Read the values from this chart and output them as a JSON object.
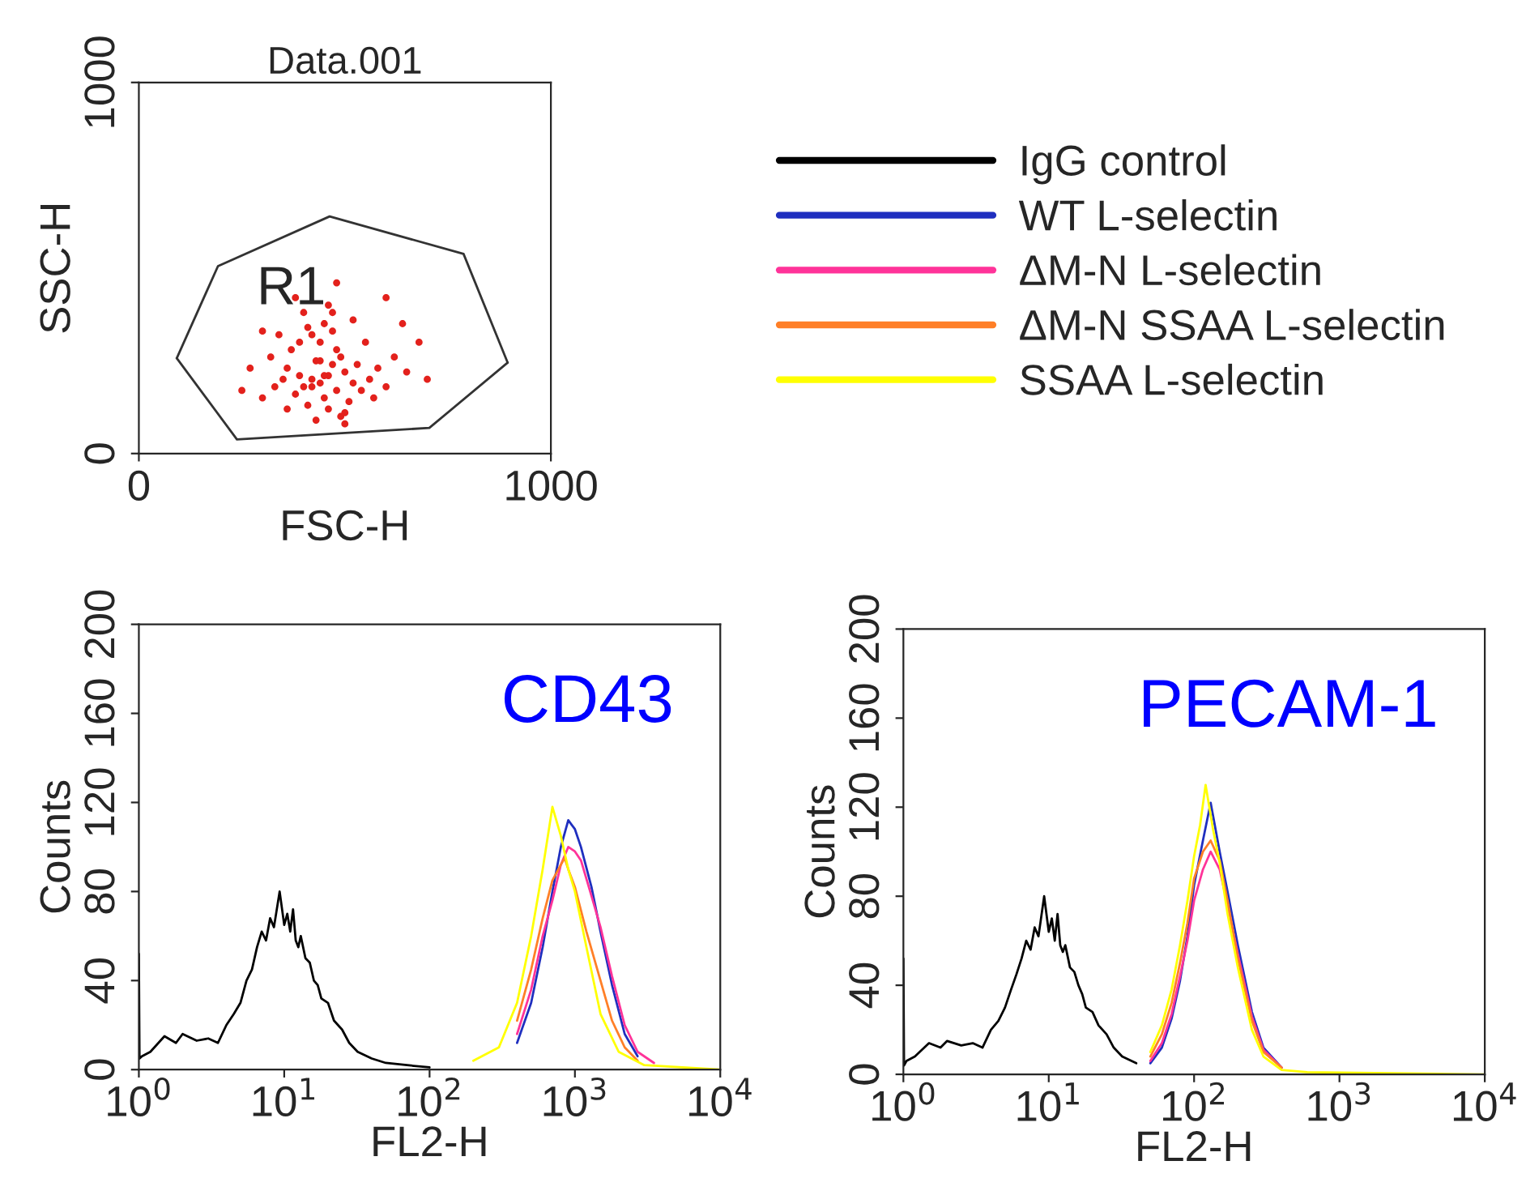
{
  "chart_data": [
    {
      "type": "scatter",
      "title": "Data.001",
      "xlabel": "FSC-H",
      "ylabel": "SSC-H",
      "xlim": [
        0,
        1000
      ],
      "ylim": [
        0,
        1000
      ],
      "xticks": [
        0,
        1000
      ],
      "yticks": [
        0,
        1000
      ],
      "grid": false,
      "annotations": [
        {
          "text": "R1",
          "x": 370,
          "y": 440
        }
      ],
      "series": [
        {
          "type": "scatter",
          "color": "#e3211c",
          "x": [
            400,
            420,
            440,
            460,
            480,
            500,
            380,
            360,
            450,
            470,
            430,
            410,
            520,
            540,
            390,
            490,
            510,
            370,
            350,
            460,
            440,
            420,
            480,
            500,
            530,
            560,
            330,
            320,
            580,
            600,
            450,
            400,
            470,
            490,
            300,
            620,
            650,
            380,
            550,
            430,
            270,
            250,
            680,
            700,
            460,
            410,
            520,
            360,
            600,
            480,
            440,
            500,
            390,
            340,
            570,
            420,
            450,
            640,
            300,
            470
          ],
          "values": [
            180,
            200,
            190,
            210,
            170,
            220,
            160,
            230,
            150,
            240,
            250,
            130,
            190,
            170,
            210,
            260,
            140,
            280,
            200,
            120,
            300,
            320,
            280,
            110,
            240,
            200,
            180,
            260,
            230,
            180,
            350,
            380,
            330,
            100,
            150,
            260,
            220,
            420,
            300,
            90,
            230,
            170,
            300,
            200,
            400,
            340,
            360,
            120,
            420,
            460,
            250,
            80,
            300,
            320,
            150,
            180,
            210,
            350,
            330,
            380
          ]
        },
        {
          "type": "line",
          "color": "#333333",
          "x": [
            92,
            192,
            463,
            788,
            895
          ],
          "values": [
            257,
            505,
            639,
            538,
            245
          ]
        },
        {
          "type": "line",
          "color": "#333333",
          "x": [
            92,
            238,
            705,
            895
          ],
          "values": [
            257,
            38,
            69,
            245
          ]
        }
      ]
    },
    {
      "type": "line",
      "xlabel": "FL2-H",
      "ylabel": "Counts",
      "log": "x",
      "xlim": [
        1,
        10000
      ],
      "ylim": [
        0,
        200
      ],
      "grid": false,
      "xticks": [
        {
          "value": 1,
          "label": "10$^{0}$"
        },
        {
          "value": 10,
          "label": "10$^{1}$"
        },
        {
          "value": 100,
          "label": "10$^{2}$"
        },
        {
          "value": 1000,
          "label": "10$^{3}$"
        },
        {
          "value": 10000,
          "label": "10$^{4}$"
        }
      ],
      "yticks": [
        0,
        40,
        80,
        120,
        160,
        200
      ],
      "annotations": [
        "CD43"
      ],
      "series": [
        {
          "color": "#000000",
          "x": [
            1,
            1.01,
            1.05,
            1.2,
            1.5,
            1.8,
            2,
            2.5,
            3,
            3.5,
            4,
            4.5,
            5,
            5.5,
            6,
            6.5,
            7,
            7.5,
            8,
            8.5,
            9.3,
            10,
            10.5,
            11,
            11.5,
            12,
            12.5,
            13,
            14,
            15,
            16,
            17,
            18,
            20,
            22,
            25,
            28,
            32,
            40,
            50,
            70,
            100
          ],
          "values": [
            52,
            5,
            6,
            8,
            15,
            12,
            16,
            13,
            14,
            12,
            20,
            25,
            30,
            40,
            45,
            55,
            62,
            58,
            68,
            64,
            80,
            65,
            70,
            62,
            72,
            58,
            55,
            60,
            50,
            48,
            40,
            38,
            32,
            30,
            22,
            18,
            12,
            8,
            5,
            3,
            2,
            1
          ]
        },
        {
          "color": "#1f2fbf",
          "x": [
            400,
            500,
            600,
            700,
            800,
            900,
            1000,
            1100,
            1300,
            1500,
            1800,
            2200,
            2700
          ],
          "values": [
            12,
            30,
            55,
            80,
            100,
            112,
            108,
            100,
            82,
            62,
            38,
            16,
            6
          ]
        },
        {
          "color": "#ff3399",
          "x": [
            400,
            500,
            600,
            700,
            800,
            900,
            1000,
            1100,
            1300,
            1500,
            1800,
            2200,
            2700,
            3500
          ],
          "values": [
            16,
            36,
            60,
            76,
            92,
            100,
            98,
            94,
            78,
            64,
            42,
            20,
            8,
            3
          ]
        },
        {
          "color": "#ff7f27",
          "x": [
            400,
            500,
            600,
            700,
            800,
            850,
            900,
            1000,
            1200,
            1500,
            1800,
            2200,
            2700
          ],
          "values": [
            22,
            45,
            68,
            85,
            92,
            95,
            90,
            82,
            62,
            40,
            22,
            10,
            4
          ]
        },
        {
          "color": "#ffff00",
          "x": [
            200,
            300,
            400,
            500,
            600,
            700,
            800,
            900,
            1000,
            1200,
            1500,
            2000,
            3000,
            10000
          ],
          "values": [
            4,
            10,
            30,
            60,
            90,
            118,
            105,
            90,
            80,
            55,
            25,
            8,
            2,
            0
          ]
        }
      ]
    },
    {
      "type": "line",
      "xlabel": "FL2-H",
      "ylabel": "Counts",
      "log": "x",
      "xlim": [
        1,
        10000
      ],
      "ylim": [
        0,
        200
      ],
      "grid": false,
      "legend": "top",
      "xticks": [
        {
          "value": 1,
          "label": "10$^{0}$"
        },
        {
          "value": 10,
          "label": "10$^{1}$"
        },
        {
          "value": 100,
          "label": "10$^{2}$"
        },
        {
          "value": 1000,
          "label": "10$^{3}$"
        },
        {
          "value": 10000,
          "label": "10$^{4}$"
        }
      ],
      "yticks": [
        0,
        40,
        80,
        120,
        160,
        200
      ],
      "annotations": [
        "PECAM-1"
      ],
      "series": [
        {
          "name": "IgG control",
          "color": "#000000",
          "x": [
            1,
            1.01,
            1.05,
            1.2,
            1.5,
            1.8,
            2,
            2.5,
            3,
            3.5,
            4,
            4.5,
            5,
            5.5,
            6,
            6.5,
            7,
            7.5,
            8,
            8.5,
            9.3,
            10,
            10.5,
            11,
            11.5,
            12,
            12.5,
            13,
            14,
            15,
            16,
            17,
            18,
            20,
            22,
            25,
            28,
            32,
            40
          ],
          "values": [
            52,
            4,
            6,
            8,
            14,
            12,
            15,
            13,
            14,
            12,
            20,
            24,
            30,
            38,
            45,
            52,
            60,
            56,
            66,
            62,
            80,
            64,
            70,
            60,
            72,
            58,
            55,
            58,
            48,
            46,
            40,
            36,
            30,
            28,
            22,
            18,
            12,
            8,
            5
          ]
        },
        {
          "name": "WT L-selectin",
          "color": "#1f2fbf",
          "x": [
            50,
            60,
            70,
            80,
            90,
            100,
            115,
            130,
            150,
            170,
            200,
            250,
            300,
            400
          ],
          "values": [
            5,
            12,
            25,
            42,
            62,
            85,
            105,
            122,
            100,
            82,
            58,
            28,
            12,
            3
          ]
        },
        {
          "name": "ΔM-N L-selectin",
          "color": "#ff3399",
          "x": [
            50,
            60,
            70,
            80,
            90,
            100,
            115,
            130,
            150,
            170,
            200,
            250,
            300,
            400
          ],
          "values": [
            6,
            14,
            27,
            44,
            60,
            78,
            92,
            100,
            92,
            76,
            54,
            26,
            11,
            3
          ]
        },
        {
          "name": "ΔM-N SSAA L-selectin",
          "color": "#ff7f27",
          "x": [
            50,
            60,
            70,
            80,
            90,
            100,
            115,
            130,
            150,
            170,
            200,
            250,
            300,
            400
          ],
          "values": [
            8,
            18,
            32,
            50,
            68,
            88,
            100,
            105,
            96,
            78,
            52,
            24,
            10,
            3
          ]
        },
        {
          "name": "SSAA L-selectin",
          "color": "#ffff00",
          "x": [
            50,
            60,
            70,
            80,
            90,
            100,
            110,
            120,
            135,
            150,
            170,
            200,
            250,
            300,
            400,
            600,
            10000
          ],
          "values": [
            10,
            22,
            38,
            58,
            78,
            98,
            112,
            130,
            110,
            95,
            72,
            48,
            20,
            8,
            2,
            1,
            0
          ]
        }
      ]
    }
  ]
}
